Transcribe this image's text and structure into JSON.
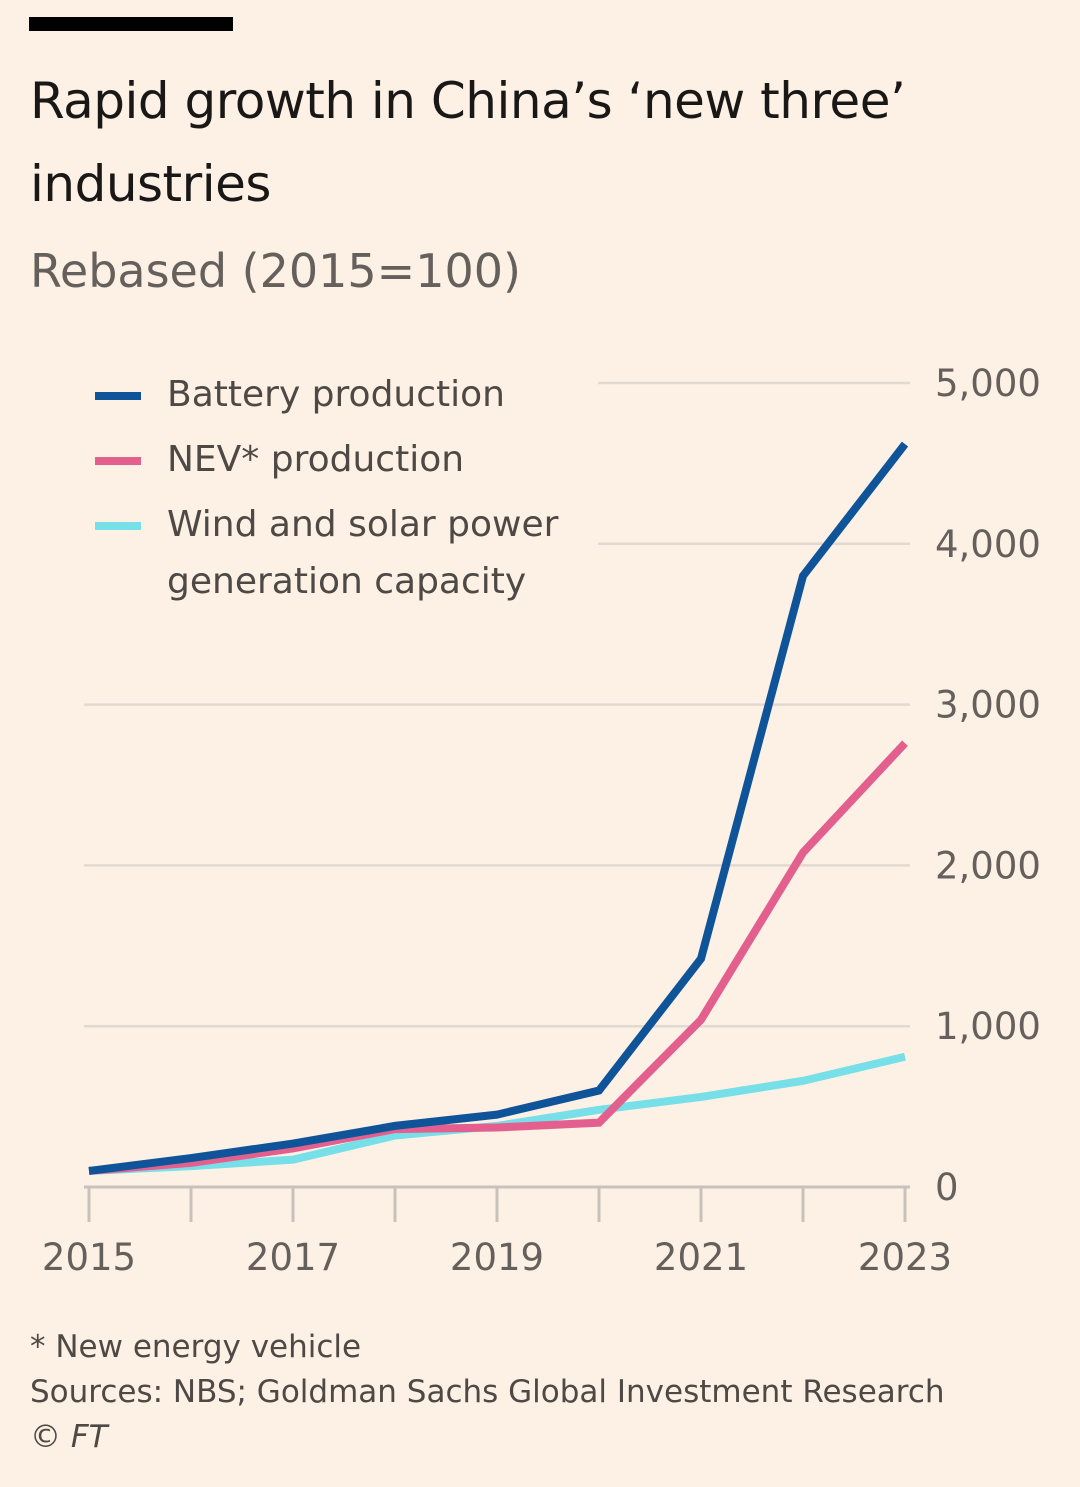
{
  "header": {
    "title": "Rapid growth in China’s ‘new three’ industries",
    "subtitle": "Rebased (2015=100)"
  },
  "footer": {
    "note": "* New energy vehicle",
    "sources": "Sources: NBS; Goldman Sachs Global Investment Research",
    "credit": "© FT"
  },
  "colors": {
    "background": "#fdf1e6",
    "gridline": "#e2d9d2",
    "axis": "#c9c1bb",
    "battery": "#0f5499",
    "nev": "#e3608e",
    "wind_solar": "#76dfe7"
  },
  "chart_data": {
    "type": "line",
    "title": "Rapid growth in China’s ‘new three’ industries",
    "subtitle": "Rebased (2015=100)",
    "xlabel": "",
    "ylabel": "",
    "x": [
      2015,
      2016,
      2017,
      2018,
      2019,
      2020,
      2021,
      2022,
      2023
    ],
    "xticks": [
      2015,
      2016,
      2017,
      2018,
      2019,
      2020,
      2021,
      2022,
      2023
    ],
    "xtick_labels": [
      "2015",
      "",
      "2017",
      "",
      "2019",
      "",
      "2021",
      "",
      "2023"
    ],
    "ylim": [
      0,
      5000
    ],
    "yticks": [
      0,
      1000,
      2000,
      3000,
      4000,
      5000
    ],
    "ytick_labels": [
      "0",
      "1,000",
      "2,000",
      "3,000",
      "4,000",
      "5,000"
    ],
    "y_axis_position": "right",
    "grid": true,
    "legend_position": "top-left",
    "series": [
      {
        "name": "Battery production",
        "color_key": "battery",
        "values": [
          100,
          180,
          270,
          380,
          450,
          600,
          1420,
          3800,
          4620
        ]
      },
      {
        "name": "NEV* production",
        "color_key": "nev",
        "values": [
          100,
          150,
          240,
          360,
          370,
          400,
          1040,
          2080,
          2760
        ]
      },
      {
        "name": "Wind and solar power generation capacity",
        "color_key": "wind_solar",
        "values": [
          100,
          130,
          170,
          320,
          380,
          480,
          560,
          660,
          810
        ]
      }
    ]
  }
}
